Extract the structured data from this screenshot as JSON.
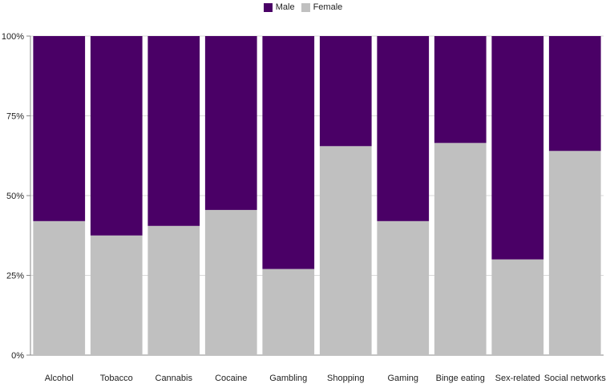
{
  "chart_data": {
    "type": "bar",
    "stacked": true,
    "percent": true,
    "categories": [
      "Alcohol",
      "Tobacco",
      "Cannabis",
      "Cocaine",
      "Gambling",
      "Shopping",
      "Gaming",
      "Binge eating",
      "Sex-related",
      "Social networks"
    ],
    "series": [
      {
        "name": "Female",
        "color": "#c0c0c0",
        "values": [
          42,
          37.5,
          40.5,
          45.5,
          27,
          65.5,
          42,
          66.5,
          30,
          64
        ]
      },
      {
        "name": "Male",
        "color": "#4a0066",
        "values": [
          58,
          62.5,
          59.5,
          54.5,
          73,
          34.5,
          58,
          33.5,
          70,
          36
        ]
      }
    ],
    "legend": {
      "position": "top",
      "order": [
        "Male",
        "Female"
      ]
    },
    "y_ticks": [
      "0%",
      "25%",
      "50%",
      "75%",
      "100%"
    ],
    "ylim": [
      0,
      100
    ],
    "grid": true
  }
}
